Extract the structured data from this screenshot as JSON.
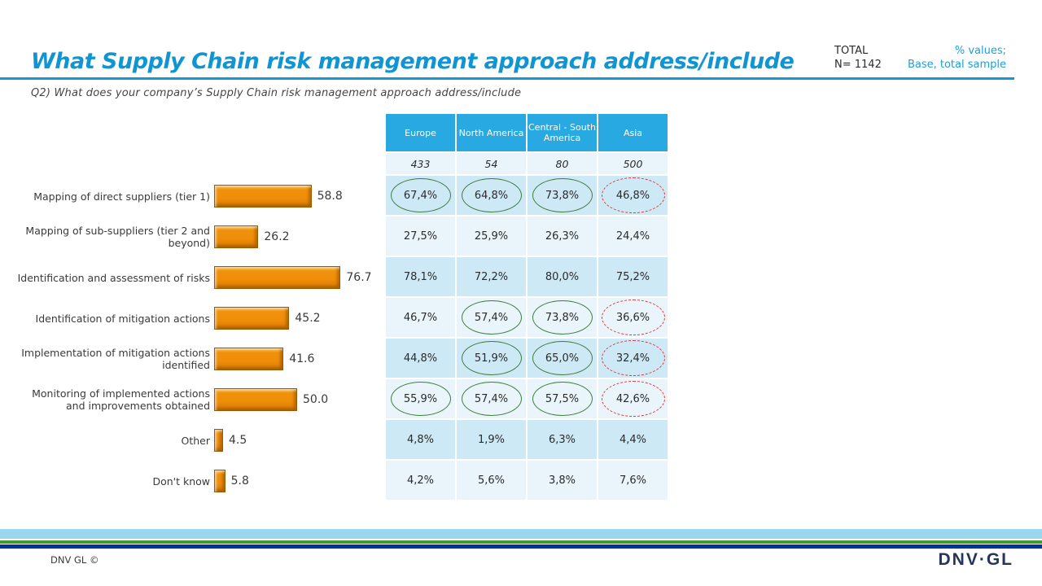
{
  "header": {
    "title": "What Supply Chain risk management approach address/include",
    "total_label": "TOTAL",
    "total_n": "N= 1142",
    "note_line1": "% values;",
    "note_line2": "Base, total sample",
    "question": "Q2) What does your company’s Supply Chain risk management approach address/include"
  },
  "chart_data": {
    "type": "bar",
    "orientation": "horizontal",
    "title": "What Supply Chain risk management approach address/include",
    "categories": [
      "Mapping of direct suppliers (tier 1)",
      "Mapping of sub-suppliers (tier 2 and beyond)",
      "Identification and assessment of risks",
      "Identification of mitigation actions",
      "Implementation of mitigation actions identified",
      "Monitoring of implemented actions and improvements obtained",
      "Other",
      "Don't know"
    ],
    "values": [
      58.8,
      26.2,
      76.7,
      45.2,
      41.6,
      50.0,
      4.5,
      5.8
    ],
    "xlim": [
      0,
      80
    ],
    "grid": false,
    "legend": false,
    "bar_color": "#EF8D08"
  },
  "table": {
    "columns": [
      "Europe",
      "North America",
      "Central - South America",
      "Asia"
    ],
    "bases": [
      "433",
      "54",
      "80",
      "500"
    ],
    "rows": [
      {
        "cells": [
          {
            "value": "67,4%",
            "mark": "green"
          },
          {
            "value": "64,8%",
            "mark": "green"
          },
          {
            "value": "73,8%",
            "mark": "green"
          },
          {
            "value": "46,8%",
            "mark": "red-dashed"
          }
        ]
      },
      {
        "cells": [
          {
            "value": "27,5%"
          },
          {
            "value": "25,9%"
          },
          {
            "value": "26,3%"
          },
          {
            "value": "24,4%"
          }
        ]
      },
      {
        "cells": [
          {
            "value": "78,1%"
          },
          {
            "value": "72,2%"
          },
          {
            "value": "80,0%"
          },
          {
            "value": "75,2%"
          }
        ]
      },
      {
        "cells": [
          {
            "value": "46,7%"
          },
          {
            "value": "57,4%",
            "mark": "green"
          },
          {
            "value": "73,8%",
            "mark": "green"
          },
          {
            "value": "36,6%",
            "mark": "red-dashed"
          }
        ]
      },
      {
        "cells": [
          {
            "value": "44,8%"
          },
          {
            "value": "51,9%",
            "mark": "green"
          },
          {
            "value": "65,0%",
            "mark": "green"
          },
          {
            "value": "32,4%",
            "mark": "red-dashed"
          }
        ]
      },
      {
        "cells": [
          {
            "value": "55,9%",
            "mark": "green"
          },
          {
            "value": "57,4%",
            "mark": "green"
          },
          {
            "value": "57,5%",
            "mark": "green"
          },
          {
            "value": "42,6%",
            "mark": "red-dashed"
          }
        ]
      },
      {
        "cells": [
          {
            "value": "4,8%"
          },
          {
            "value": "1,9%"
          },
          {
            "value": "6,3%"
          },
          {
            "value": "4,4%"
          }
        ]
      },
      {
        "cells": [
          {
            "value": "4,2%"
          },
          {
            "value": "5,6%"
          },
          {
            "value": "3,8%"
          },
          {
            "value": "7,6%"
          }
        ]
      }
    ]
  },
  "footer": {
    "copyright": "DNV GL ©",
    "logo": "DNV·GL"
  },
  "colors": {
    "title_blue": "#1095D2",
    "rule_blue": "#1797D1",
    "note_blue": "#1E9FD9",
    "table_header_blue": "#29A9E1",
    "row_dark": "#CDE9F6",
    "row_light": "#E9F5FB",
    "bar_orange": "#EF8D08",
    "mark_green": "#3E7E40",
    "mark_red": "#DD3B41",
    "stripe_lightblue": "#9BD7EE",
    "stripe_green": "#3F9C35",
    "stripe_navy": "#003591",
    "logo_navy": "#25355A"
  }
}
